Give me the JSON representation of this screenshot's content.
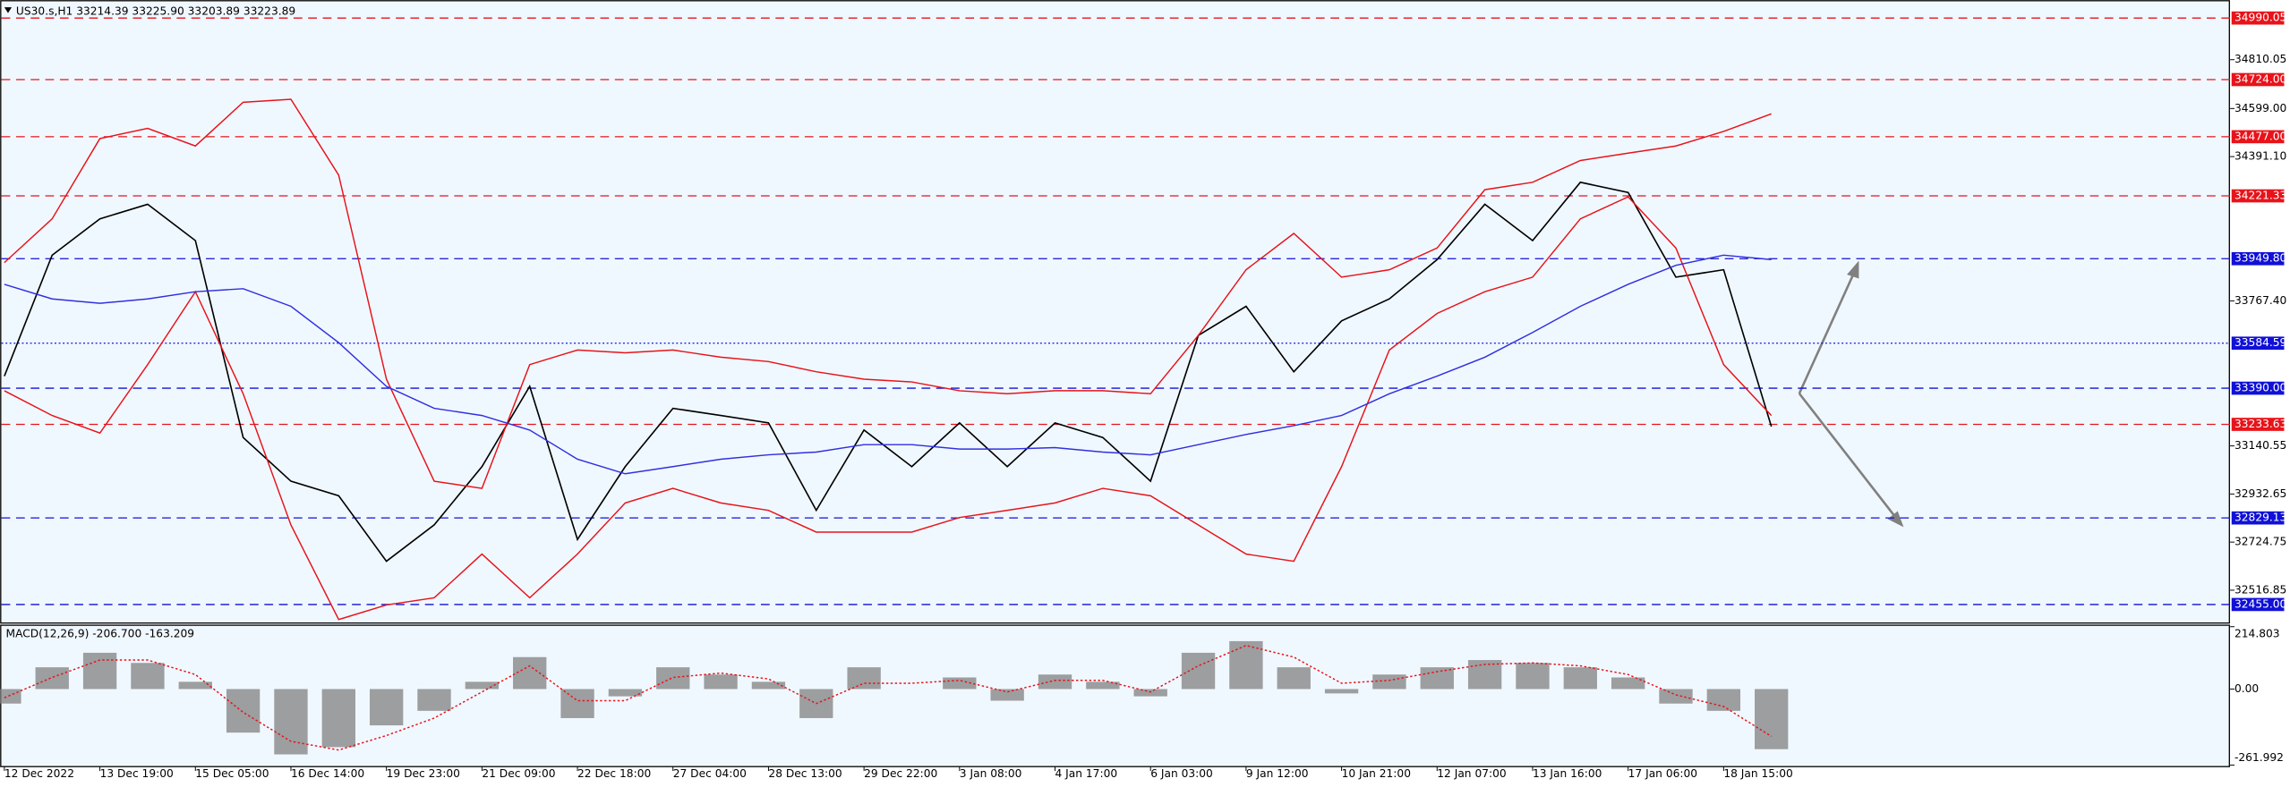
{
  "chart_data": {
    "type": "line",
    "title": "US30.s,H1  33214.39 33225.90 33203.89 33223.89",
    "categories": [
      "12 Dec 2022",
      null,
      "13 Dec 19:00",
      null,
      "15 Dec 05:00",
      null,
      "16 Dec 14:00",
      null,
      "19 Dec 23:00",
      null,
      "21 Dec 09:00",
      null,
      "22 Dec 18:00",
      null,
      "27 Dec 04:00",
      null,
      "28 Dec 13:00",
      null,
      "29 Dec 22:00",
      null,
      "3 Jan 08:00",
      null,
      "4 Jan 17:00",
      null,
      "6 Jan 03:00",
      null,
      "9 Jan 12:00",
      null,
      "10 Jan 21:00",
      null,
      "12 Jan 07:00",
      null,
      "13 Jan 16:00",
      null,
      "17 Jan 06:00",
      null,
      "18 Jan 15:00",
      null
    ],
    "ylim": [
      32378,
      35068
    ],
    "yticks": [
      {
        "value": 34810.05,
        "label": "34810.05"
      },
      {
        "value": 34599.0,
        "label": "34599.00"
      },
      {
        "value": 34391.1,
        "label": "34391.10"
      },
      {
        "value": 33767.4,
        "label": "33767.40"
      },
      {
        "value": 33140.55,
        "label": "33140.55"
      },
      {
        "value": 32932.65,
        "label": "32932.65"
      },
      {
        "value": 32724.75,
        "label": "32724.75"
      },
      {
        "value": 32516.85,
        "label": "32516.85"
      }
    ],
    "levels": [
      {
        "value": 34990.05,
        "label": "34990.05",
        "color": "#e8131a",
        "style": "dashed"
      },
      {
        "value": 34724.0,
        "label": "34724.00",
        "color": "#e8131a",
        "style": "dashed"
      },
      {
        "value": 34477.0,
        "label": "34477.00",
        "color": "#e8131a",
        "style": "dashed"
      },
      {
        "value": 34221.33,
        "label": "34221.33",
        "color": "#e8131a",
        "style": "dashed"
      },
      {
        "value": 33949.8,
        "label": "33949.80",
        "color": "#1010d8",
        "style": "dashed"
      },
      {
        "value": 33584.59,
        "label": "33584.59",
        "color": "#1010d8",
        "style": "dotted"
      },
      {
        "value": 33390.0,
        "label": "33390.00",
        "color": "#1010d8",
        "style": "dashed"
      },
      {
        "value": 33233.63,
        "label": "33233.63",
        "color": "#e8131a",
        "style": "dashed"
      },
      {
        "value": 32829.13,
        "label": "32829.13",
        "color": "#1010d8",
        "style": "dashed"
      },
      {
        "value": 32455.0,
        "label": "32455.00",
        "color": "#1010d8",
        "style": "dashed"
      }
    ],
    "series": [
      {
        "color": "#000000",
        "values": [
          33442,
          33965,
          34122,
          34185,
          34028,
          33177,
          32988,
          32925,
          32642,
          32799,
          33051,
          33398,
          32736,
          33051,
          33303,
          33272,
          33240,
          32862,
          33209,
          33051,
          33240,
          33051,
          33240,
          33177,
          32988,
          33618,
          33744,
          33461,
          33681,
          33776,
          33946,
          34185,
          34028,
          34280,
          34236,
          33870,
          33902,
          33224
        ]
      },
      {
        "color": "#e8131a",
        "values": [
          33933,
          34122,
          34469,
          34513,
          34437,
          34626,
          34639,
          34311,
          33429,
          32988,
          32957,
          33492,
          33555,
          33543,
          33555,
          33524,
          33505,
          33461,
          33429,
          33417,
          33379,
          33366,
          33379,
          33379,
          33366,
          33618,
          33902,
          34059,
          33870,
          33902,
          33996,
          34248,
          34280,
          34374,
          34406,
          34437,
          34500,
          34576
        ]
      },
      {
        "color": "#e8131a",
        "values": [
          33379,
          33272,
          33196,
          33492,
          33807,
          33366,
          32799,
          32390,
          32453,
          32484,
          32673,
          32484,
          32673,
          32894,
          32957,
          32894,
          32862,
          32768,
          32768,
          32768,
          32831,
          32862,
          32894,
          32957,
          32925,
          32799,
          32673,
          32642,
          33051,
          33555,
          33713,
          33807,
          33870,
          34122,
          34217,
          33996,
          33492,
          33272
        ]
      },
      {
        "color": "#3030e0",
        "values": [
          33839,
          33776,
          33757,
          33776,
          33807,
          33820,
          33744,
          33587,
          33398,
          33303,
          33272,
          33209,
          33083,
          33020,
          33051,
          33083,
          33102,
          33114,
          33146,
          33146,
          33127,
          33127,
          33133,
          33114,
          33102,
          33146,
          33190,
          33228,
          33272,
          33366,
          33442,
          33524,
          33631,
          33744,
          33839,
          33921,
          33965,
          33946
        ]
      }
    ],
    "macd": {
      "type": "bar",
      "title": "MACD(12,26,9) -206.700 -163.209",
      "ylim": [
        -261.992,
        214.803
      ],
      "yticks": [
        {
          "value": 214.803,
          "label": "214.803"
        },
        {
          "value": 0,
          "label": "0.00"
        },
        {
          "value": -261.992,
          "label": "-261.992"
        }
      ],
      "series": [
        {
          "color": "#808080",
          "values": [
            -50,
            75,
            125,
            90,
            25,
            -150,
            -225,
            -200,
            -125,
            -75,
            25,
            110,
            -100,
            -25,
            75,
            50,
            25,
            -100,
            75,
            0,
            40,
            -40,
            50,
            25,
            -25,
            125,
            165,
            75,
            -15,
            50,
            75,
            100,
            90,
            75,
            40,
            -50,
            -75,
            -207
          ]
        },
        {
          "color": "#e8131a",
          "values": [
            -30,
            40,
            100,
            100,
            50,
            -80,
            -180,
            -210,
            -160,
            -100,
            -10,
            80,
            -40,
            -40,
            40,
            55,
            35,
            -50,
            20,
            20,
            30,
            -10,
            30,
            30,
            -10,
            80,
            150,
            110,
            20,
            30,
            60,
            85,
            90,
            80,
            50,
            -20,
            -60,
            -163
          ]
        }
      ]
    }
  }
}
